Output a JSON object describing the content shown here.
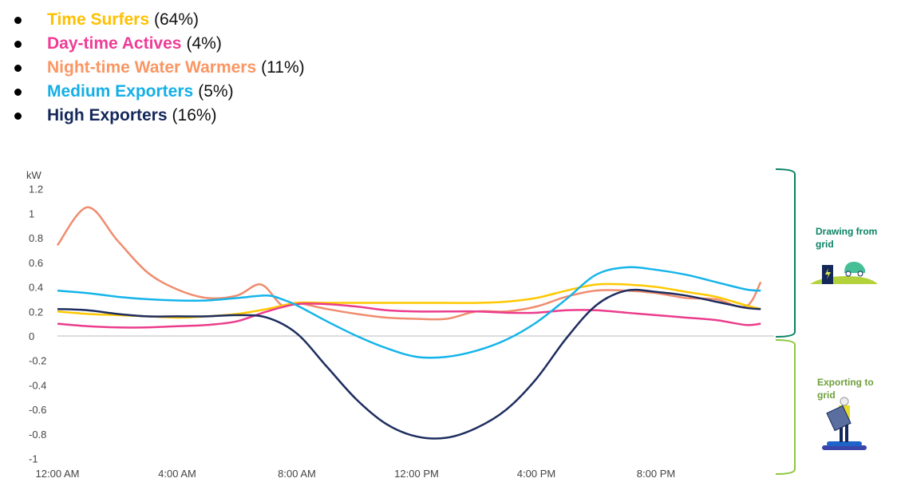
{
  "legend": [
    {
      "name": "Time Surfers",
      "pct": "(64%)",
      "color": "#FFC000"
    },
    {
      "name": "Day-time Actives",
      "pct": "(4%)",
      "color": "#F03C96"
    },
    {
      "name": "Night-time Water Warmers",
      "pct": "(11%)",
      "color": "#FA9664"
    },
    {
      "name": "Medium Exporters",
      "pct": "(5%)",
      "color": "#14AFE6"
    },
    {
      "name": "High Exporters",
      "pct": "(16%)",
      "color": "#14285A"
    }
  ],
  "side": {
    "drawing": "Drawing from grid",
    "exporting": "Exporting to grid",
    "drawing_color": "#0A8264",
    "exporting_color": "#6EA03C"
  },
  "chart_data": {
    "type": "line",
    "ylabel": "kW",
    "ylim": [
      -1,
      1.2
    ],
    "yticks": [
      "1.2",
      "1",
      "0.8",
      "0.6",
      "0.4",
      "0.2",
      "0",
      "-0.2",
      "-0.4",
      "-0.6",
      "-0.8",
      "-1"
    ],
    "ytick_values": [
      1.2,
      1,
      0.8,
      0.6,
      0.4,
      0.2,
      0,
      -0.2,
      -0.4,
      -0.6,
      -0.8,
      -1
    ],
    "xticks": [
      "12:00 AM",
      "4:00 AM",
      "8:00 AM",
      "12:00 PM",
      "4:00 PM",
      "8:00 PM"
    ],
    "xtick_hours": [
      0,
      4,
      8,
      12,
      16,
      20
    ],
    "xlim_hours": [
      0,
      23.5
    ],
    "series": [
      {
        "name": "Night-time Water Warmers",
        "color": "#F08C6E",
        "x": [
          0,
          1,
          2,
          3,
          4,
          5,
          6,
          6.8,
          7.5,
          8,
          9,
          10,
          11,
          12,
          13,
          14,
          15,
          16,
          17,
          18,
          19,
          20,
          21,
          22,
          23,
          23.5
        ],
        "y": [
          0.74,
          1.05,
          0.78,
          0.52,
          0.38,
          0.31,
          0.33,
          0.42,
          0.25,
          0.27,
          0.22,
          0.18,
          0.15,
          0.14,
          0.14,
          0.2,
          0.2,
          0.24,
          0.32,
          0.37,
          0.37,
          0.35,
          0.31,
          0.3,
          0.24,
          0.44
        ]
      },
      {
        "name": "Time Surfers",
        "color": "#FFC800",
        "x": [
          0,
          1,
          2,
          3,
          4,
          5,
          6,
          7,
          8,
          9,
          10,
          11,
          12,
          13,
          14,
          15,
          16,
          17,
          18,
          19,
          20,
          21,
          22,
          23,
          23.5
        ],
        "y": [
          0.2,
          0.18,
          0.17,
          0.16,
          0.15,
          0.16,
          0.18,
          0.22,
          0.27,
          0.27,
          0.27,
          0.27,
          0.27,
          0.27,
          0.27,
          0.28,
          0.31,
          0.37,
          0.42,
          0.42,
          0.4,
          0.36,
          0.32,
          0.25,
          0.22
        ]
      },
      {
        "name": "Day-time Actives",
        "color": "#EB3C8C",
        "x": [
          0,
          1,
          2,
          3,
          4,
          5,
          6,
          7,
          8,
          9,
          10,
          11,
          12,
          13,
          14,
          15,
          16,
          17,
          18,
          19,
          20,
          21,
          22,
          23,
          23.5
        ],
        "y": [
          0.1,
          0.08,
          0.07,
          0.07,
          0.08,
          0.09,
          0.12,
          0.2,
          0.26,
          0.26,
          0.24,
          0.21,
          0.2,
          0.2,
          0.2,
          0.19,
          0.19,
          0.21,
          0.21,
          0.19,
          0.17,
          0.15,
          0.13,
          0.09,
          0.1
        ]
      },
      {
        "name": "Medium Exporters",
        "color": "#14B4EB",
        "x": [
          0,
          1,
          2,
          3,
          4,
          5,
          6,
          7,
          7.5,
          8,
          9,
          10,
          11,
          12,
          13,
          14,
          15,
          16,
          17,
          18,
          19,
          20,
          21,
          22,
          23,
          23.5
        ],
        "y": [
          0.37,
          0.35,
          0.32,
          0.3,
          0.29,
          0.29,
          0.31,
          0.33,
          0.3,
          0.25,
          0.12,
          0.0,
          -0.1,
          -0.17,
          -0.17,
          -0.12,
          -0.03,
          0.11,
          0.3,
          0.5,
          0.56,
          0.54,
          0.5,
          0.44,
          0.38,
          0.37
        ]
      },
      {
        "name": "High Exporters",
        "color": "#1E2D5F",
        "x": [
          0,
          1,
          2,
          3,
          4,
          5,
          6,
          7,
          8,
          9,
          10,
          11,
          12,
          13,
          14,
          15,
          16,
          17,
          18,
          19,
          20,
          21,
          22,
          23,
          23.5
        ],
        "y": [
          0.22,
          0.21,
          0.18,
          0.16,
          0.16,
          0.16,
          0.17,
          0.15,
          0.02,
          -0.25,
          -0.52,
          -0.72,
          -0.82,
          -0.83,
          -0.75,
          -0.6,
          -0.35,
          -0.02,
          0.25,
          0.37,
          0.36,
          0.33,
          0.28,
          0.23,
          0.22
        ]
      }
    ]
  }
}
